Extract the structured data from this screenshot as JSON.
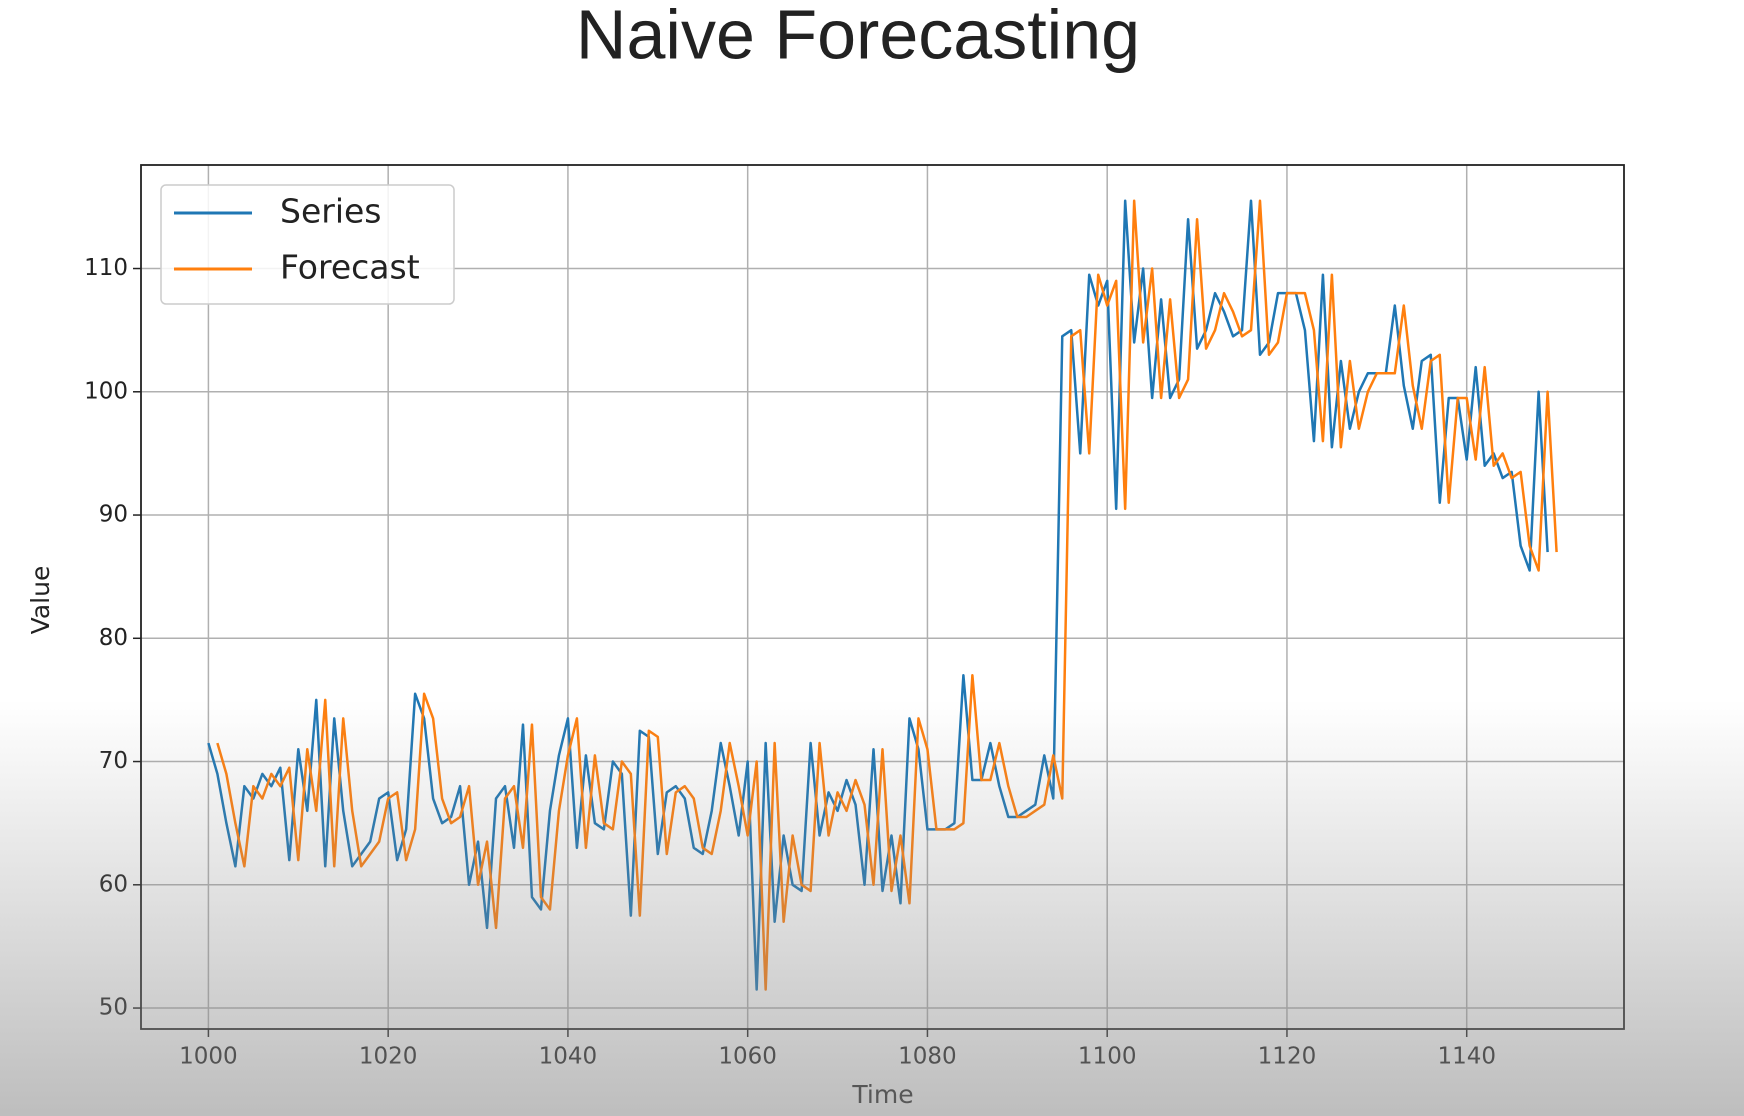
{
  "chart_data": {
    "type": "line",
    "title": "Naive Forecasting",
    "xlabel": "Time",
    "ylabel": "Value",
    "x": [
      1000,
      1001,
      1002,
      1003,
      1004,
      1005,
      1006,
      1007,
      1008,
      1009,
      1010,
      1011,
      1012,
      1013,
      1014,
      1015,
      1016,
      1017,
      1018,
      1019,
      1020,
      1021,
      1022,
      1023,
      1024,
      1025,
      1026,
      1027,
      1028,
      1029,
      1030,
      1031,
      1032,
      1033,
      1034,
      1035,
      1036,
      1037,
      1038,
      1039,
      1040,
      1041,
      1042,
      1043,
      1044,
      1045,
      1046,
      1047,
      1048,
      1049,
      1050,
      1051,
      1052,
      1053,
      1054,
      1055,
      1056,
      1057,
      1058,
      1059,
      1060,
      1061,
      1062,
      1063,
      1064,
      1065,
      1066,
      1067,
      1068,
      1069,
      1070,
      1071,
      1072,
      1073,
      1074,
      1075,
      1076,
      1077,
      1078,
      1079,
      1080,
      1081,
      1082,
      1083,
      1084,
      1085,
      1086,
      1087,
      1088,
      1089,
      1090,
      1091,
      1092,
      1093,
      1094,
      1095,
      1096,
      1097,
      1098,
      1099,
      1100,
      1101,
      1102,
      1103,
      1104,
      1105,
      1106,
      1107,
      1108,
      1109,
      1110,
      1111,
      1112,
      1113,
      1114,
      1115,
      1116,
      1117,
      1118,
      1119,
      1120,
      1121,
      1122,
      1123,
      1124,
      1125,
      1126,
      1127,
      1128,
      1129,
      1130,
      1131,
      1132,
      1133,
      1134,
      1135,
      1136,
      1137,
      1138,
      1139,
      1140,
      1141,
      1142,
      1143,
      1144,
      1145,
      1146,
      1147,
      1148,
      1149,
      1150
    ],
    "series": [
      {
        "name": "Series",
        "color": "#1f77b4",
        "values": [
          71.5,
          69,
          65,
          61.5,
          68,
          67,
          69,
          68,
          69.5,
          62,
          71,
          66,
          75,
          61.5,
          73.5,
          66,
          61.5,
          62.5,
          63.5,
          67,
          67.5,
          62,
          64.5,
          75.5,
          73.5,
          67,
          65,
          65.5,
          68,
          60,
          63.5,
          56.5,
          67,
          68,
          63,
          73,
          59,
          58,
          66,
          70.5,
          73.5,
          63,
          70.5,
          65,
          64.5,
          70,
          69,
          57.5,
          72.5,
          72,
          62.5,
          67.5,
          68,
          67,
          63,
          62.5,
          66,
          71.5,
          68,
          64,
          70,
          51.5,
          71.5,
          57,
          64,
          60,
          59.5,
          71.5,
          64,
          67.5,
          66,
          68.5,
          66.5,
          60,
          71,
          59.5,
          64,
          58.5,
          73.5,
          71,
          64.5,
          64.5,
          64.5,
          65,
          77,
          68.5,
          68.5,
          71.5,
          68,
          65.5,
          65.5,
          66,
          66.5,
          70.5,
          67,
          104.5,
          105,
          95,
          109.5,
          107,
          109,
          90.5,
          115.5,
          104,
          110,
          99.5,
          107.5,
          99.5,
          101,
          114,
          103.5,
          105,
          108,
          106.5,
          104.5,
          105,
          115.5,
          103,
          104,
          108,
          108,
          108,
          105,
          96,
          109.5,
          95.5,
          102.5,
          97,
          100,
          101.5,
          101.5,
          101.5,
          107,
          100.5,
          97,
          102.5,
          103,
          91,
          99.5,
          99.5,
          94.5,
          102,
          94,
          95,
          93,
          93.5,
          87.5,
          85.5,
          100,
          87,
          null
        ]
      },
      {
        "name": "Forecast",
        "color": "#ff7f0e",
        "values": [
          null,
          71.5,
          69,
          65,
          61.5,
          68,
          67,
          69,
          68,
          69.5,
          62,
          71,
          66,
          75,
          61.5,
          73.5,
          66,
          61.5,
          62.5,
          63.5,
          67,
          67.5,
          62,
          64.5,
          75.5,
          73.5,
          67,
          65,
          65.5,
          68,
          60,
          63.5,
          56.5,
          67,
          68,
          63,
          73,
          59,
          58,
          66,
          70.5,
          73.5,
          63,
          70.5,
          65,
          64.5,
          70,
          69,
          57.5,
          72.5,
          72,
          62.5,
          67.5,
          68,
          67,
          63,
          62.5,
          66,
          71.5,
          68,
          64,
          70,
          51.5,
          71.5,
          57,
          64,
          60,
          59.5,
          71.5,
          64,
          67.5,
          66,
          68.5,
          66.5,
          60,
          71,
          59.5,
          64,
          58.5,
          73.5,
          71,
          64.5,
          64.5,
          64.5,
          65,
          77,
          68.5,
          68.5,
          71.5,
          68,
          65.5,
          65.5,
          66,
          66.5,
          70.5,
          67,
          104.5,
          105,
          95,
          109.5,
          107,
          109,
          90.5,
          115.5,
          104,
          110,
          99.5,
          107.5,
          99.5,
          101,
          114,
          103.5,
          105,
          108,
          106.5,
          104.5,
          105,
          115.5,
          103,
          104,
          108,
          108,
          108,
          105,
          96,
          109.5,
          95.5,
          102.5,
          97,
          100,
          101.5,
          101.5,
          101.5,
          107,
          100.5,
          97,
          102.5,
          103,
          91,
          99.5,
          99.5,
          94.5,
          102,
          94,
          95,
          93,
          93.5,
          87.5,
          85.5,
          100,
          87
        ]
      }
    ],
    "xlim": [
      992.5,
      1157.5
    ],
    "xticks": [
      1000,
      1020,
      1040,
      1060,
      1080,
      1100,
      1120,
      1140
    ],
    "ylim": [
      48.3,
      118.4
    ],
    "yticks": [
      50,
      60,
      70,
      80,
      90,
      100,
      110
    ],
    "grid": true,
    "legend": "upper left"
  }
}
